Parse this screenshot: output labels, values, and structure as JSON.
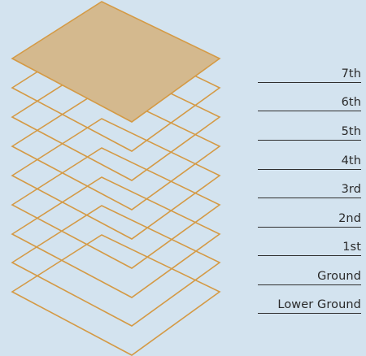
{
  "floors": [
    {
      "label": "7th",
      "highlighted": true
    },
    {
      "label": "6th",
      "highlighted": false
    },
    {
      "label": "5th",
      "highlighted": false
    },
    {
      "label": "4th",
      "highlighted": false
    },
    {
      "label": "3rd",
      "highlighted": false
    },
    {
      "label": "2nd",
      "highlighted": false
    },
    {
      "label": "1st",
      "highlighted": false
    },
    {
      "label": "Ground",
      "highlighted": false
    },
    {
      "label": "Lower Ground",
      "highlighted": false
    }
  ],
  "colors": {
    "background": "#d3e3ef",
    "outline": "#d49a45",
    "highlight_fill": "#d4b98e"
  }
}
